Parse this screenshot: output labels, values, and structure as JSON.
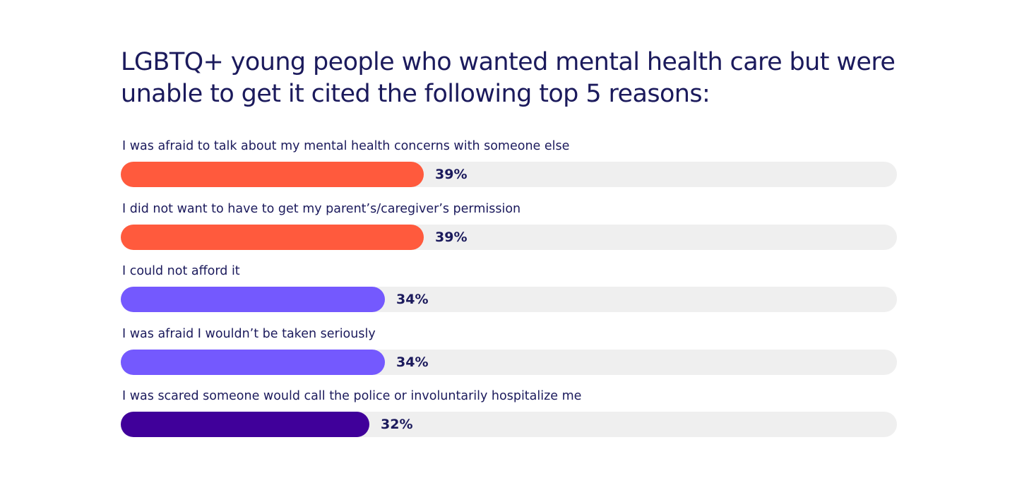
{
  "chart_data": {
    "type": "bar",
    "orientation": "horizontal",
    "title": "LGBTQ+ young people who wanted mental health care but were unable to get it cited the following top 5 reasons:",
    "xlim": [
      0,
      100
    ],
    "categories": [
      "I was afraid to talk about my mental health concerns with someone else",
      "I did not want to have to get my parent’s/caregiver’s permission",
      "I could not afford it",
      "I was afraid I wouldn’t be taken seriously",
      "I was scared someone would call the police or involuntarily hospitalize me"
    ],
    "values": [
      39,
      39,
      34,
      34,
      32
    ],
    "value_labels": [
      "39%",
      "39%",
      "34%",
      "34%",
      "32%"
    ],
    "colors": [
      "#ff5a3d",
      "#ff5a3d",
      "#7459fe",
      "#7459fe",
      "#40009a"
    ],
    "track_color": "#efefef",
    "grid": false,
    "legend": "none"
  }
}
